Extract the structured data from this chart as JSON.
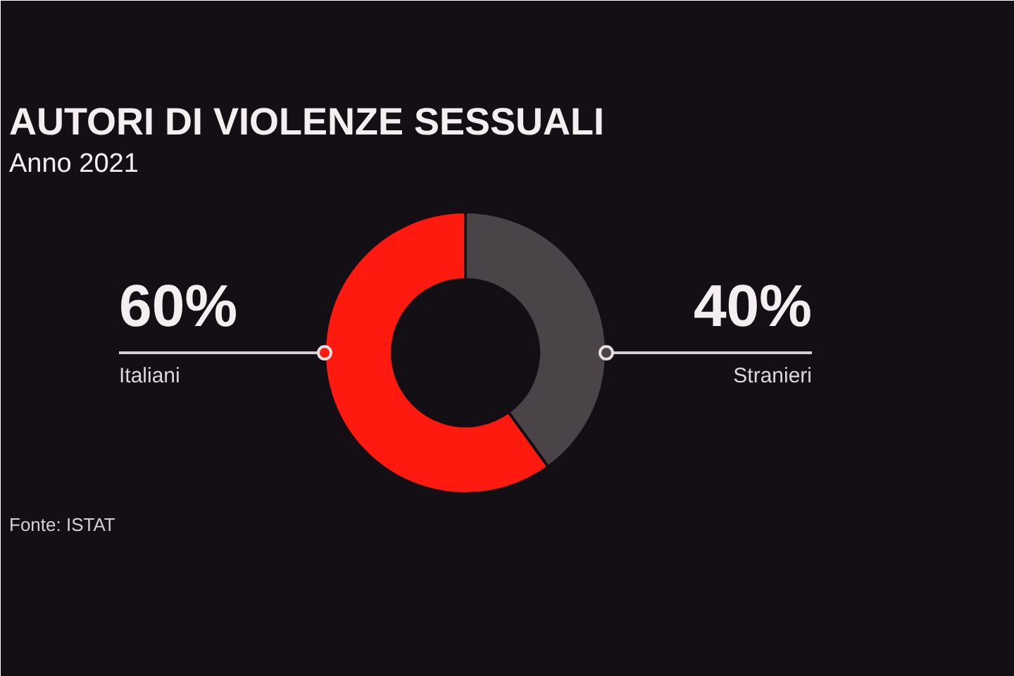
{
  "chart_data": {
    "type": "donut",
    "title": "AUTORI DI VIOLENZE SESSUALI",
    "subtitle": "Anno 2021",
    "categories": [
      "Italiani",
      "Stranieri"
    ],
    "values": [
      60,
      40
    ],
    "colors": [
      "#ff1a10",
      "#4a4347"
    ],
    "value_labels": [
      "60%",
      "40%"
    ],
    "annotations": [
      "Fonte: ISTAT"
    ]
  }
}
